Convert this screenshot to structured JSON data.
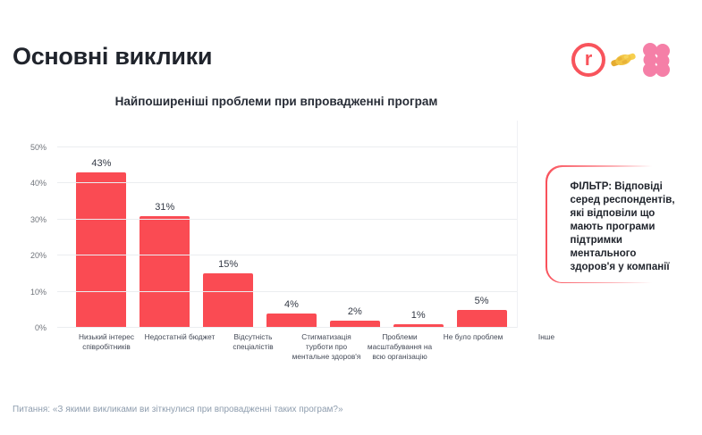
{
  "page": {
    "title": "Основні виклики"
  },
  "header": {
    "logos": {
      "robota_letter": "r",
      "robota_icon": "robota-ua-logo",
      "handshake_icon": "handshake-emoji",
      "clover_icon": "pink-clover-logo"
    }
  },
  "chart_data": {
    "type": "bar",
    "title": "Найпоширеніші проблеми при впровадженні програм",
    "categories": [
      "Низький інтерес співробітників",
      "Недостатній бюджет",
      "Відсутність спеціалістів",
      "Стигматизація турботи про ментальне здоров'я",
      "Проблеми масштабування на всю організацію",
      "Не було проблем",
      "Інше"
    ],
    "values": [
      43,
      31,
      15,
      4,
      2,
      1,
      5
    ],
    "value_labels": [
      "43%",
      "31%",
      "15%",
      "4%",
      "2%",
      "1%",
      "5%"
    ],
    "xlabel": "",
    "ylabel": "",
    "ylim": [
      0,
      50
    ],
    "yticks": [
      "0%",
      "10%",
      "20%",
      "30%",
      "40%",
      "50%"
    ],
    "grid": true,
    "legend": false,
    "bar_color": "#fa4b53"
  },
  "filter_note": {
    "text": "ФІЛЬТР: Відповіді серед респондентів, які відповіли що мають програми підтримки ментального здоров'я у компанії"
  },
  "footer": {
    "question": "Питання: «З якими викликами ви зіткнулися при впровадженні таких програм?»"
  },
  "colors": {
    "accent_red": "#fa4b53",
    "logo_red": "#f8545c",
    "logo_pink": "#f57fa7",
    "handshake_gold": "#f2c444",
    "text_dark": "#20242c",
    "text_muted": "#8e9dae",
    "gridline": "#ebedf0"
  }
}
